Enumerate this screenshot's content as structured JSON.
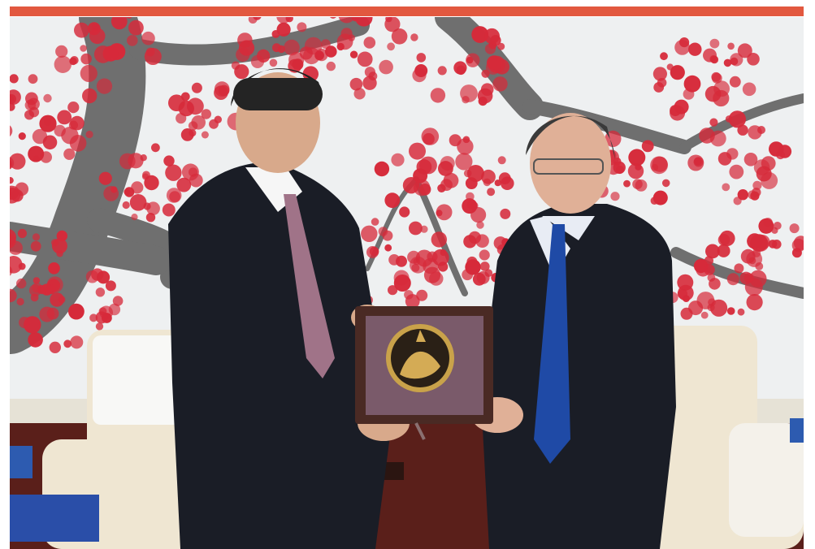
{
  "scene": {
    "accent_color": "#e2583f",
    "wall_color": "#eef0f1",
    "blossom_color": "#d62a3a",
    "branch_color": "#6f6f6f",
    "suit_color": "#1a1d26",
    "left_tie_color": "#a07388",
    "right_tie_color": "#1f4aa6",
    "plaque_frame_color": "#4a2a24",
    "plaque_medallion_color": "#c9a24a",
    "sofa_color": "#efe6d2",
    "table_color": "#5a1f1a"
  }
}
